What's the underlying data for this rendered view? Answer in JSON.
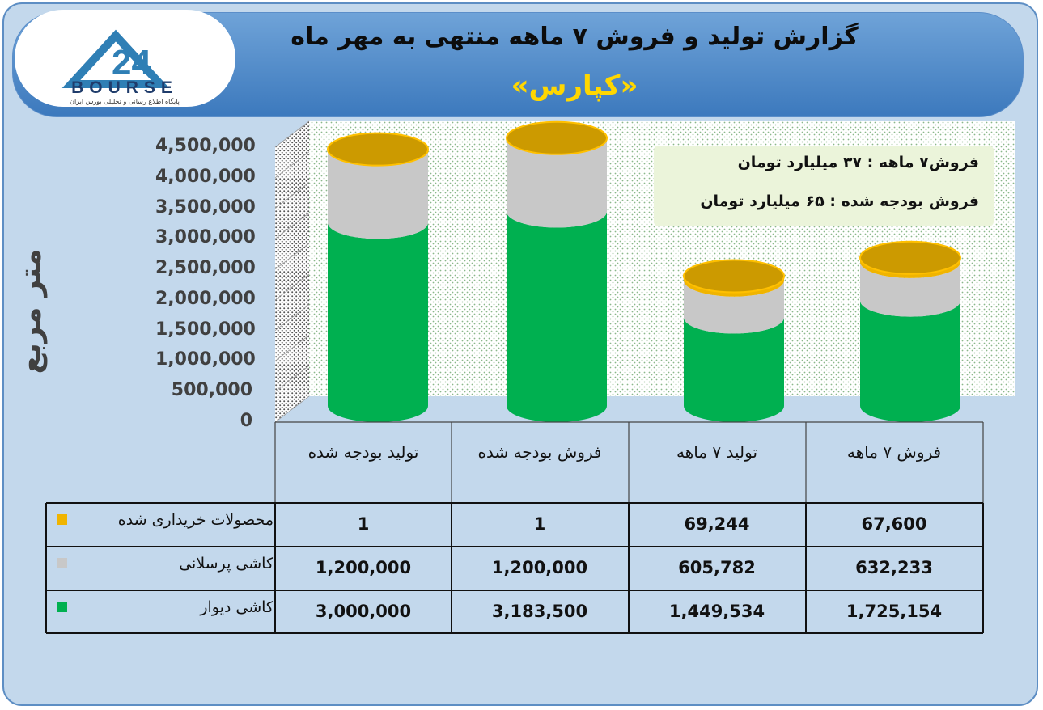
{
  "header": {
    "title": "گزارش تولید و فروش ۷ ماهه منتهی به مهر ماه",
    "subtitle": "«کپارس»",
    "logo_text": "BOURSE",
    "logo_tagline": "پایگاه اطلاع رسانی و تحلیلی بورس ایران"
  },
  "info_box": {
    "line1": "فروش۷ ماهه : ۳۷ میلیارد تومان",
    "line2": "فروش بودجه شده : ۶۵ میلیارد تومان"
  },
  "chart_data": {
    "type": "bar",
    "stacked": true,
    "ylabel": "متر مربع",
    "ylim": [
      0,
      4500000
    ],
    "yticks": [
      "0",
      "500,000",
      "1,000,000",
      "1,500,000",
      "2,000,000",
      "2,500,000",
      "3,000,000",
      "3,500,000",
      "4,000,000",
      "4,500,000"
    ],
    "categories": [
      "تولید بودجه شده",
      "فروش بودجه شده",
      "تولید ۷ ماهه",
      "فروش ۷ ماهه"
    ],
    "series": [
      {
        "name": "کاشی دیوار",
        "color": "#00b050",
        "values": [
          3000000,
          3183500,
          1449534,
          1725154
        ],
        "display": [
          "3,000,000",
          "3,183,500",
          "1,449,534",
          "1,725,154"
        ]
      },
      {
        "name": "کاشی پرسلانی",
        "color": "#c8c8c8",
        "values": [
          1200000,
          1200000,
          605782,
          632233
        ],
        "display": [
          "1,200,000",
          "1,200,000",
          "605,782",
          "632,233"
        ]
      },
      {
        "name": "محصولات خریداری شده",
        "color": "#f0b400",
        "values": [
          1,
          1,
          69244,
          67600
        ],
        "display": [
          "1",
          "1",
          "69,244",
          "67,600"
        ]
      }
    ],
    "grid": true
  }
}
